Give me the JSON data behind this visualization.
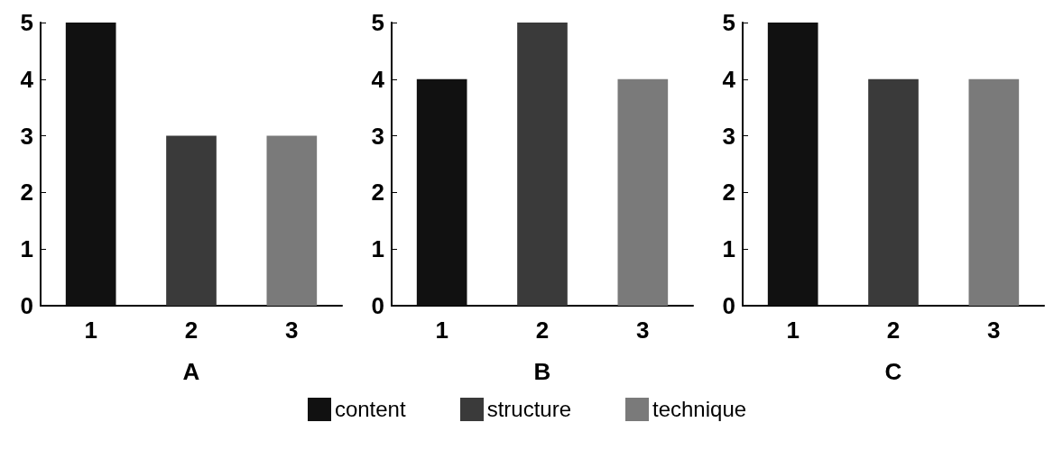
{
  "chart_data": [
    {
      "type": "bar",
      "xlabel": "A",
      "categories": [
        "1",
        "2",
        "3"
      ],
      "ylim": [
        0,
        5
      ],
      "yticks": [
        0,
        1,
        2,
        3,
        4,
        5
      ],
      "legend": "bottom",
      "series": [
        {
          "name": "content",
          "color": "#111111",
          "values": [
            5,
            null,
            null
          ]
        },
        {
          "name": "structure",
          "color": "#3a3a3a",
          "values": [
            null,
            3,
            null
          ]
        },
        {
          "name": "technique",
          "color": "#7a7a7a",
          "values": [
            null,
            null,
            3
          ]
        }
      ]
    },
    {
      "type": "bar",
      "xlabel": "B",
      "categories": [
        "1",
        "2",
        "3"
      ],
      "ylim": [
        0,
        5
      ],
      "yticks": [
        0,
        1,
        2,
        3,
        4,
        5
      ],
      "series": [
        {
          "color": "#111111",
          "values": [
            4,
            null,
            null
          ]
        },
        {
          "color": "#3a3a3a",
          "values": [
            null,
            5,
            null
          ]
        },
        {
          "color": "#7a7a7a",
          "values": [
            null,
            null,
            4
          ]
        }
      ]
    },
    {
      "type": "bar",
      "xlabel": "C",
      "categories": [
        "1",
        "2",
        "3"
      ],
      "ylim": [
        0,
        5
      ],
      "yticks": [
        0,
        1,
        2,
        3,
        4,
        5
      ],
      "series": [
        {
          "color": "#111111",
          "values": [
            5,
            null,
            null
          ]
        },
        {
          "color": "#3a3a3a",
          "values": [
            null,
            4,
            null
          ]
        },
        {
          "color": "#7a7a7a",
          "values": [
            null,
            null,
            4
          ]
        }
      ]
    }
  ]
}
